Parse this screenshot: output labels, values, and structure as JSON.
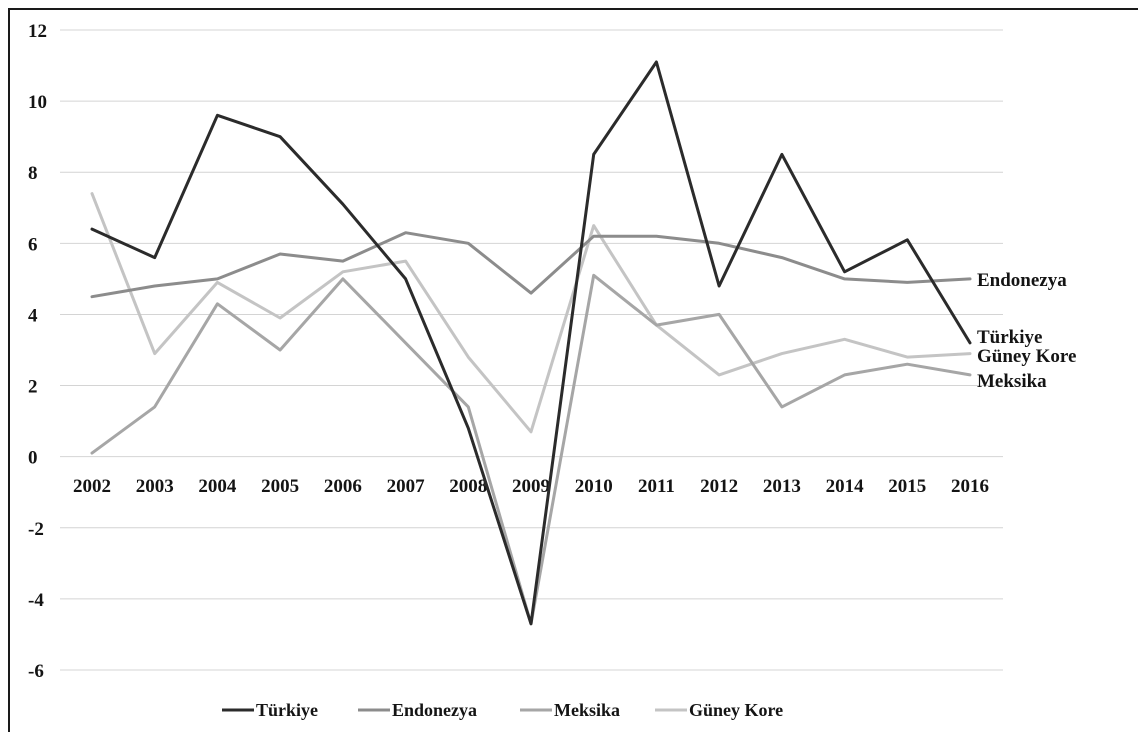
{
  "chart_data": {
    "type": "line",
    "title": "",
    "xlabel": "",
    "ylabel": "",
    "x": [
      "2002",
      "2003",
      "2004",
      "2005",
      "2006",
      "2007",
      "2008",
      "2009",
      "2010",
      "2011",
      "2012",
      "2013",
      "2014",
      "2015",
      "2016"
    ],
    "ylim": [
      -6,
      12
    ],
    "yticks": [
      "12",
      "10",
      "8",
      "6",
      "4",
      "2",
      "0",
      "-2",
      "-4",
      "-6"
    ],
    "grid": true,
    "legend_position": "bottom",
    "series": [
      {
        "name": "Türkiye",
        "color": "#2b2b2b",
        "values": [
          6.4,
          5.6,
          9.6,
          9.0,
          7.1,
          5.0,
          0.8,
          -4.7,
          8.5,
          11.1,
          4.8,
          8.5,
          5.2,
          6.1,
          3.2
        ]
      },
      {
        "name": "Endonezya",
        "color": "#8c8c8c",
        "values": [
          4.5,
          4.8,
          5.0,
          5.7,
          5.5,
          6.3,
          6.0,
          4.6,
          6.2,
          6.2,
          6.0,
          5.6,
          5.0,
          4.9,
          5.0
        ]
      },
      {
        "name": "Meksika",
        "color": "#a6a6a6",
        "values": [
          0.1,
          1.4,
          4.3,
          3.0,
          5.0,
          3.2,
          1.4,
          -4.7,
          5.1,
          3.7,
          4.0,
          1.4,
          2.3,
          2.6,
          2.3
        ]
      },
      {
        "name": "Güney Kore",
        "color": "#c4c4c4",
        "values": [
          7.4,
          2.9,
          4.9,
          3.9,
          5.2,
          5.5,
          2.8,
          0.7,
          6.5,
          3.7,
          2.3,
          2.9,
          3.3,
          2.8,
          2.9
        ]
      }
    ],
    "end_labels": [
      "Endonezya",
      "Türkiye",
      "Güney Kore",
      "Meksika"
    ]
  }
}
